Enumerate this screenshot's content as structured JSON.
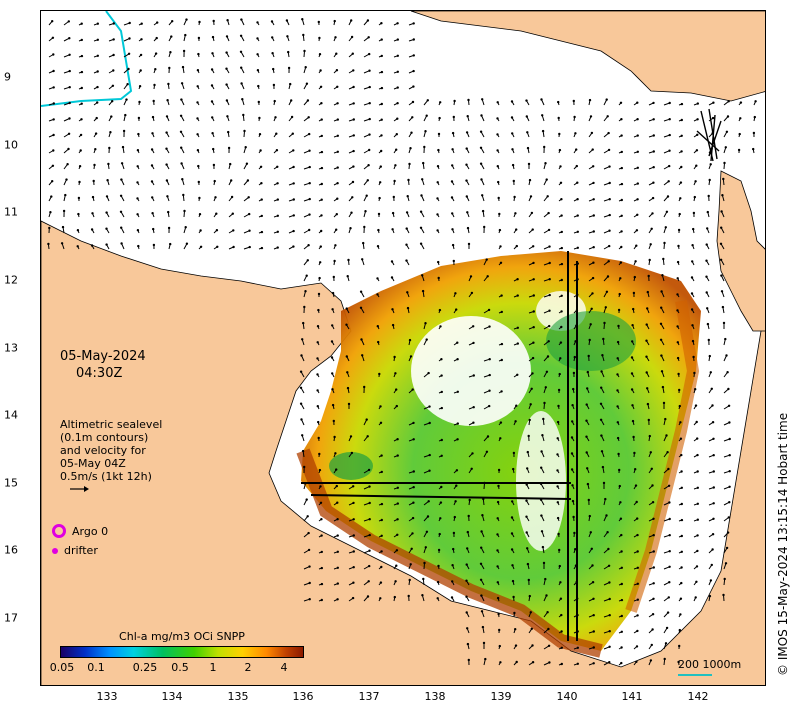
{
  "map": {
    "date": "05-May-2024",
    "time": "04:30Z",
    "lat_ticks": [
      "9",
      "10",
      "11",
      "12",
      "13",
      "14",
      "15",
      "16",
      "17"
    ],
    "lon_ticks": [
      "133",
      "134",
      "135",
      "136",
      "137",
      "138",
      "139",
      "140",
      "141",
      "142"
    ],
    "altimetry_note": [
      "Altimetric sealevel",
      "(0.1m contours)",
      "and velocity for",
      "05-May 04Z",
      "0.5m/s (1kt 12h)"
    ],
    "legend": {
      "argo": "Argo 0",
      "drifter": "drifter"
    },
    "colorbar": {
      "title": "Chl-a mg/m3 OCi SNPP",
      "ticks": [
        "0.05",
        "0.1",
        "0.25",
        "0.5",
        "1",
        "2",
        "4"
      ]
    },
    "scale_bar": "200  1000m",
    "copyright": "© IMOS 15-May-2024 13:15:14 Hobart time",
    "colors": {
      "land": "#f8c89a",
      "sea": "#ffffff",
      "contour": "#00c8d8",
      "marker": "#e000e0"
    }
  }
}
